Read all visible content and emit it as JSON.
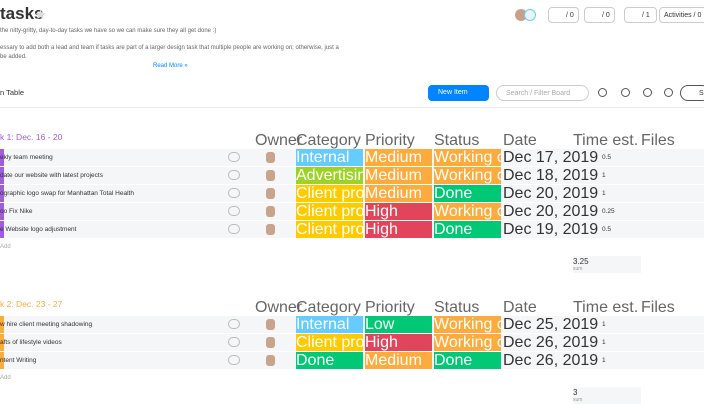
{
  "header": {
    "title": "tasks",
    "description": [
      "the nitty-gritty, day-to-day tasks we have so we can make sure they all get done :)",
      "essary to add both a lead and team if tasks are part of a larger design task that multiple people are working on; otherwise, just a",
      "be added."
    ],
    "read_more": "Read More »",
    "counters": [
      "/ 0",
      "/ 0",
      "/ 1"
    ],
    "activities": "Activities / 0"
  },
  "toolbar": {
    "view": "n Table",
    "new_item": "New Item",
    "search": "Search / Filter Board",
    "cut_button": "S"
  },
  "label_colors": {
    "Internal": "#66ccff",
    "Advertising": "#9cd326",
    "Client projects": "#ffcb00",
    "Done": "#00c875",
    "Medium": "#fdab3d",
    "High": "#e2445c",
    "Low": "#00c875",
    "Working on it": "#fdab3d"
  },
  "groups": [
    {
      "title": "k 1: Dec. 16 - 20",
      "color": "#a25ddc",
      "columns": [
        "Owner",
        "Category",
        "Priority",
        "Status",
        "Date",
        "Time est.",
        "Files"
      ],
      "rows": [
        {
          "name": "ekly team meeting",
          "category": "Internal",
          "priority": "Medium",
          "status": "Working on it",
          "date": "Dec 17, 2019",
          "time": 0.5
        },
        {
          "name": "date our website with latest projects",
          "category": "Advertising",
          "priority": "Medium",
          "status": "Working on it",
          "date": "Dec 18, 2019",
          "time": 1
        },
        {
          "name": "ographic logo swap for Manhattan Total Health",
          "category": "Client projects",
          "priority": "Medium",
          "status": "Done",
          "date": "Dec 20, 2019",
          "time": 1
        },
        {
          "name": "oo Fix Nike",
          "category": "Client projects",
          "priority": "High",
          "status": "Working on it",
          "date": "Dec 20, 2019",
          "time": 0.25
        },
        {
          "name": "e Website logo adjustment",
          "category": "Client projects",
          "priority": "High",
          "status": "Done",
          "date": "Dec 19, 2019",
          "time": 0.5
        }
      ],
      "add": "Add",
      "sum": 3.25,
      "sum_label": "sum"
    },
    {
      "title": "k 2: Dec. 23 - 27",
      "color": "#fdab3d",
      "columns": [
        "Owner",
        "Category",
        "Priority",
        "Status",
        "Date",
        "Time est.",
        "Files"
      ],
      "rows": [
        {
          "name": "w hire client meeting shadowing",
          "category": "Internal",
          "priority": "Low",
          "status": "Working on it",
          "date": "Dec 25, 2019",
          "time": 1
        },
        {
          "name": "afts of lifestyle videos",
          "category": "Client projects",
          "priority": "High",
          "status": "Working on it",
          "date": "Dec 26, 2019",
          "time": 1
        },
        {
          "name": "ntent Writing",
          "category": "Done",
          "priority": "Medium",
          "status": "Done",
          "date": "Dec 26, 2019",
          "time": 1
        }
      ],
      "add": "Add",
      "sum": 3,
      "sum_label": "sum"
    }
  ]
}
